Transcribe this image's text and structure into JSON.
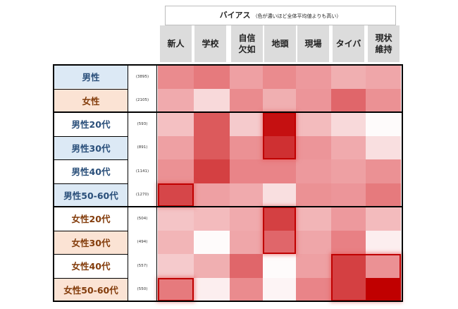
{
  "chart_data": {
    "type": "heatmap",
    "title": "バイアス",
    "subtitle": "（色が濃いほど全体平均値よりも高い）",
    "columns": [
      "新人",
      "学校",
      "自信\n欠如",
      "地頭",
      "現場",
      "タイバ",
      "現状\n維持"
    ],
    "rows": [
      {
        "label": "男性",
        "count": "(3895)",
        "values": [
          0.55,
          0.62,
          0.45,
          0.55,
          0.48,
          0.38,
          0.42
        ]
      },
      {
        "label": "女性",
        "count": "(2105)",
        "values": [
          0.4,
          0.18,
          0.55,
          0.38,
          0.5,
          0.68,
          0.52
        ]
      },
      {
        "label": "男性20代",
        "count": "(593)",
        "values": [
          0.3,
          0.72,
          0.25,
          0.95,
          0.32,
          0.18,
          0.02
        ]
      },
      {
        "label": "男性30代",
        "count": "(891)",
        "values": [
          0.45,
          0.72,
          0.52,
          0.85,
          0.5,
          0.4,
          0.15
        ]
      },
      {
        "label": "男性40代",
        "count": "(1141)",
        "values": [
          0.52,
          0.8,
          0.58,
          0.58,
          0.48,
          0.45,
          0.52
        ]
      },
      {
        "label": "男性50-60代",
        "count": "(1270)",
        "values": [
          0.78,
          0.45,
          0.4,
          0.15,
          0.52,
          0.5,
          0.62
        ]
      },
      {
        "label": "女性20代",
        "count": "(504)",
        "values": [
          0.28,
          0.32,
          0.4,
          0.8,
          0.35,
          0.48,
          0.32
        ]
      },
      {
        "label": "女性30代",
        "count": "(494)",
        "values": [
          0.35,
          0.02,
          0.42,
          0.68,
          0.42,
          0.6,
          0.08
        ]
      },
      {
        "label": "女性40代",
        "count": "(557)",
        "values": [
          0.25,
          0.38,
          0.68,
          0.02,
          0.45,
          0.8,
          0.52
        ]
      },
      {
        "label": "女性50-60代",
        "count": "(550)",
        "values": [
          0.62,
          0.08,
          0.55,
          0.05,
          0.58,
          0.8,
          1.0
        ]
      }
    ],
    "highlighted_cells": [
      {
        "row": 2,
        "col": 3
      },
      {
        "row": 3,
        "col": 3
      },
      {
        "row": 5,
        "col": 0
      },
      {
        "row": 6,
        "col": 3
      },
      {
        "row": 7,
        "col": 3
      },
      {
        "row": 8,
        "col": 5
      },
      {
        "row": 8,
        "col": 6
      },
      {
        "row": 9,
        "col": 5
      },
      {
        "row": 9,
        "col": 6
      },
      {
        "row": 9,
        "col": 0
      }
    ],
    "legend": "none",
    "grid": false
  },
  "colors": {
    "low": "#ffffff",
    "high": "#c00000",
    "highlight_border": "#c00000",
    "male_label_text": "#2a4f7a",
    "female_label_text": "#833c0b",
    "male_label_bg": "#dce9f5",
    "female_label_bg": "#fbe3d4",
    "column_header_bg": "#dcdcdc"
  }
}
